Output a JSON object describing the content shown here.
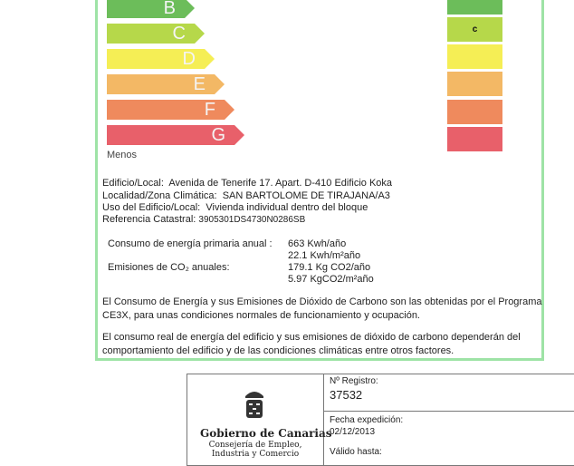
{
  "scale": {
    "bars": [
      {
        "label": "B",
        "color": "#6cbd5a"
      },
      {
        "label": "C",
        "color": "#b6d84a"
      },
      {
        "label": "D",
        "color": "#f5ee55"
      },
      {
        "label": "E",
        "color": "#f3b865"
      },
      {
        "label": "F",
        "color": "#ef8a5d"
      },
      {
        "label": "G",
        "color": "#e8606a"
      }
    ],
    "low_label": "Menos"
  },
  "rating": {
    "boxes": [
      "#6cbd5a",
      "#b6d84a",
      "#f5ee55",
      "#f3b865",
      "#ef8a5d",
      "#e8606a"
    ],
    "value": "c"
  },
  "building": {
    "edificio_label": "Edificio/Local:",
    "edificio": "Avenida de Tenerife 17. Apart. D-410 Edificio Koka",
    "localidad_label": "Localidad/Zona Climática:",
    "localidad": "SAN BARTOLOME DE TIRAJANA/A3",
    "uso_label": "Uso del Edificio/Local:",
    "uso": "Vivienda individual dentro del bloque",
    "ref_label": "Referencia Catastral:",
    "ref": "3905301DS4730N0286SB"
  },
  "consumo": {
    "label": "Consumo de energía primaria anual :",
    "v1": "663 Kwh/año",
    "v2": "22.1 Kwh/m²año"
  },
  "emisiones": {
    "label": "Emisiones de CO₂ anuales:",
    "v1": "179.1 Kg CO2/año",
    "v2": "5.97 KgCO2/m²año"
  },
  "notes": [
    "El Consumo de Energía y sus Emisiones de Dióxido de Carbono son las obtenidas por el Programa CE3X, para unas condiciones normales de funcionamiento y ocupación.",
    "El consumo real de energía del edificio y sus emisiones de dióxido de carbono dependerán del comportamiento del edificio y de las condiciones climáticas entre otros factores."
  ],
  "registry": {
    "org": "Gobierno de Canarias",
    "dept": "Consejería de Empleo, Industria y Comercio",
    "reg_label": "Nº Registro:",
    "reg": "37532",
    "fecha_label": "Fecha expedición:",
    "fecha": "02/12/2013",
    "valido_label": "Válido hasta:"
  }
}
